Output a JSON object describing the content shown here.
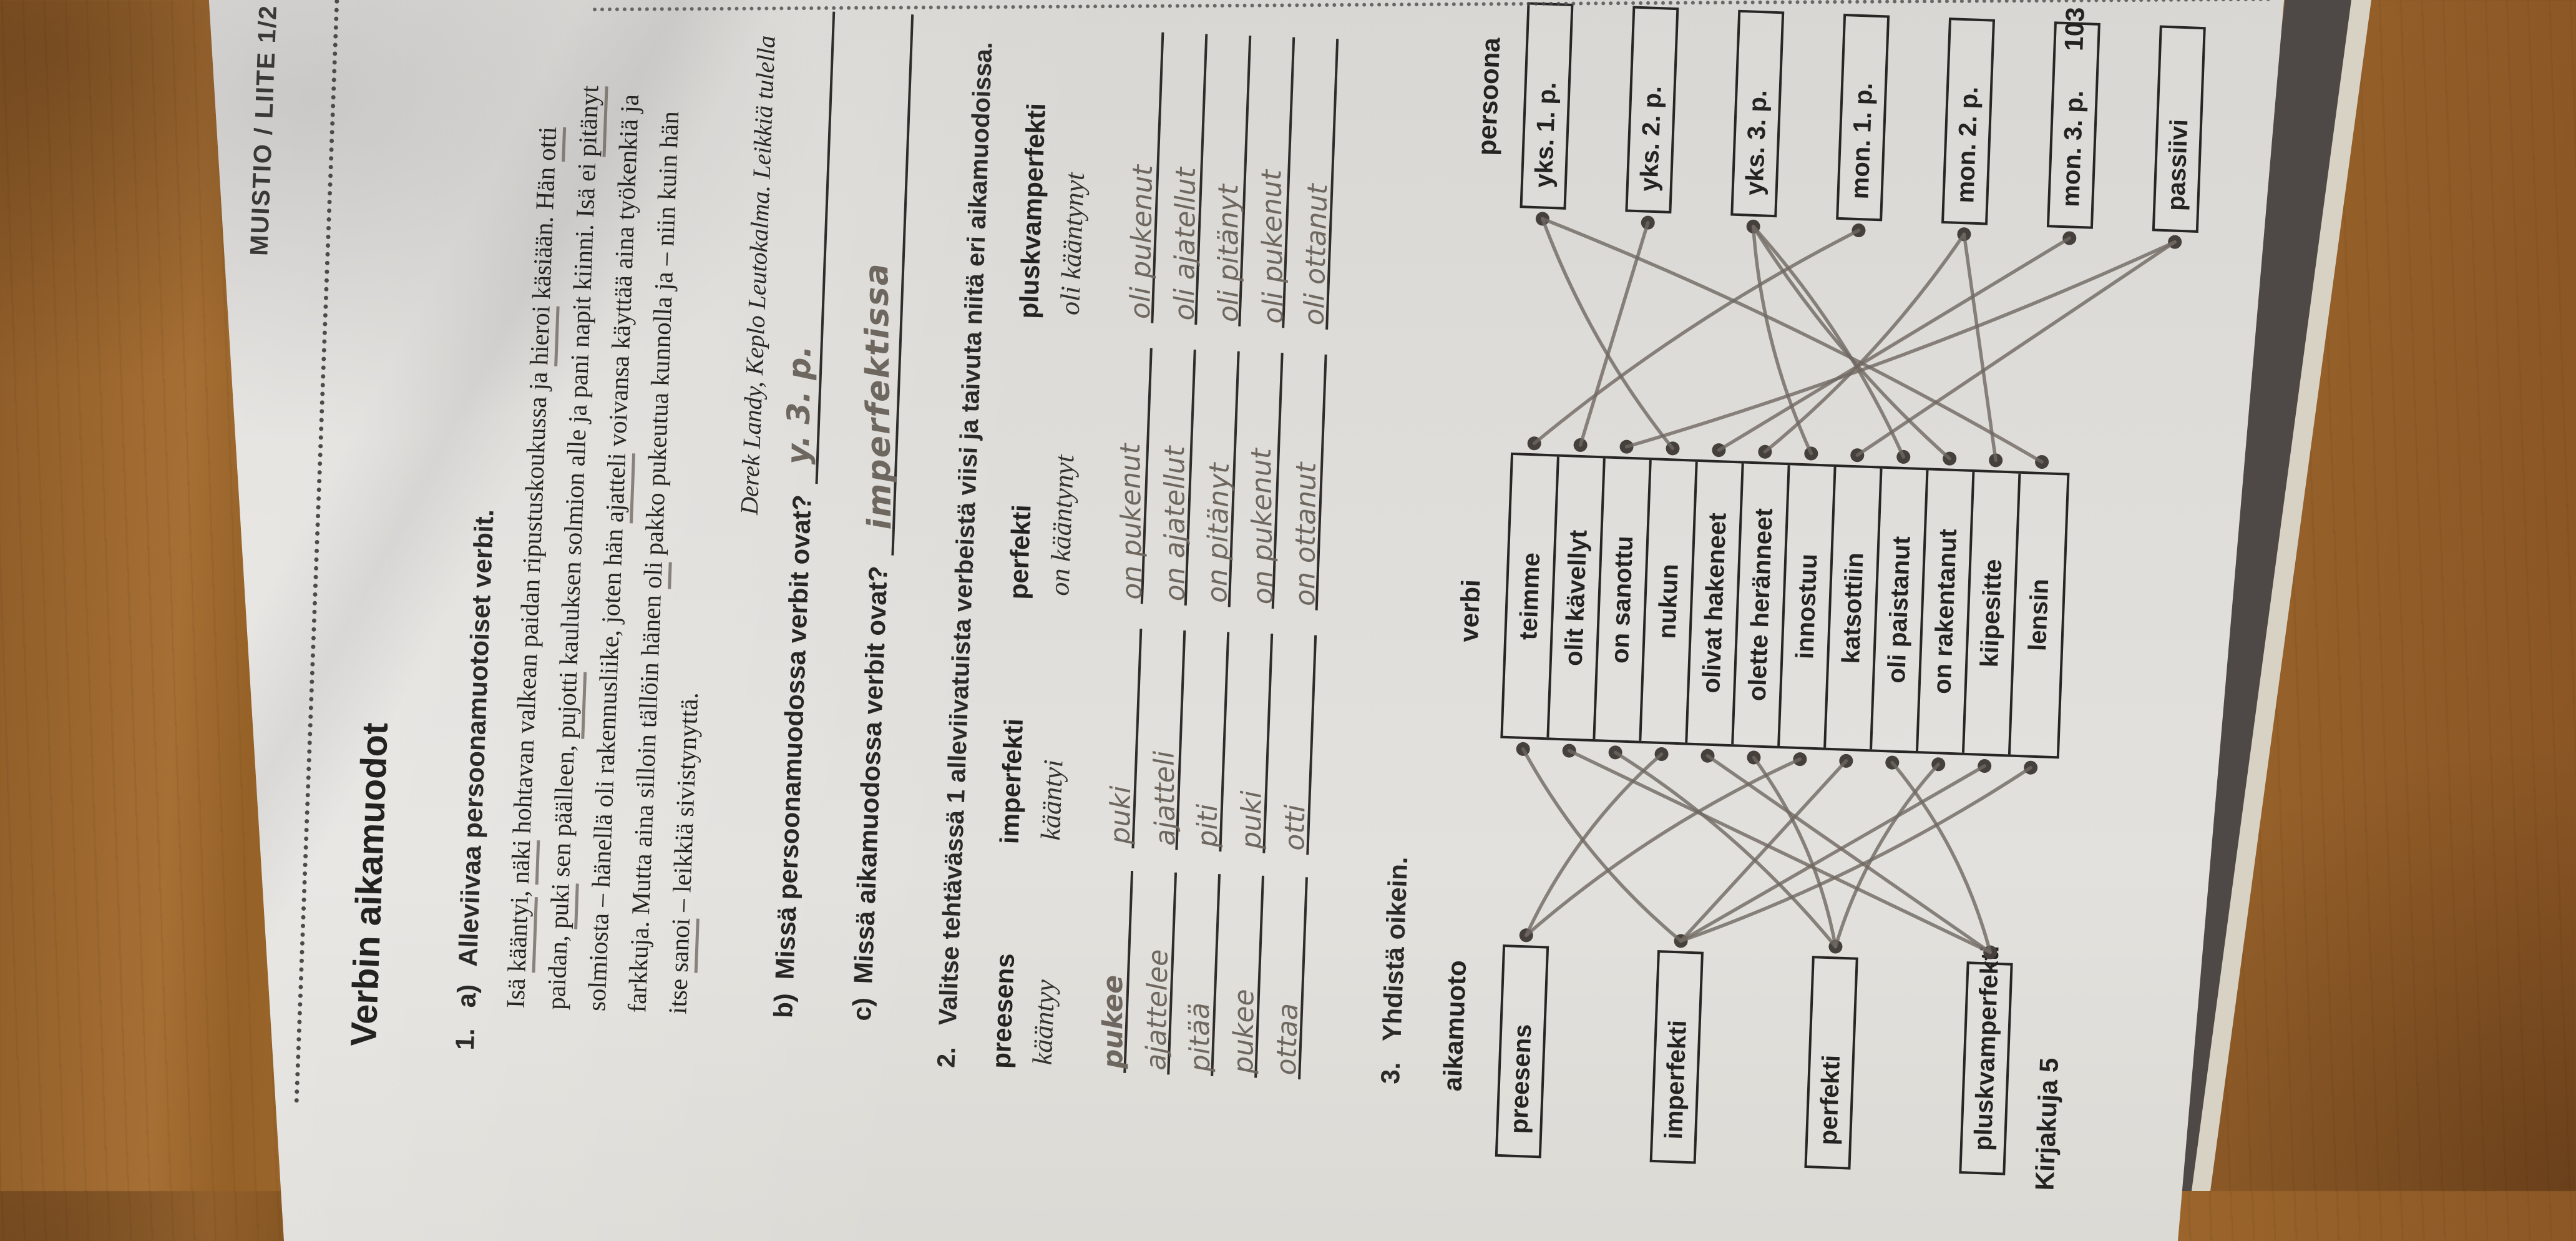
{
  "header": {
    "label": "MUISTIO / LIITE 1/2"
  },
  "title": "Verbin aikamuodot",
  "task1": {
    "number": "1.",
    "letter": "a)",
    "instruction": "Alleviivaa persoonamuotoiset verbit.",
    "paragraph_lines": [
      {
        "text": "Isä kääntyi, näki hohtavan valkean paidan ripustuskoukussa ja hieroi käsiään. Hän otti",
        "u": [
          "kääntyi",
          "näki",
          "hieroi",
          "otti"
        ]
      },
      {
        "text": "paidan, puki sen päälleen, pujotti kauluksen solmion alle ja pani napit kiinni. Isä ei pitänyt",
        "u": [
          "puki",
          "pujotti",
          "pitänyt"
        ]
      },
      {
        "text": "solmiosta – hänellä oli rakennusliike, joten hän ajatteli voivansa käyttää aina työkenkiä ja",
        "u": [
          "ajatteli"
        ]
      },
      {
        "text": "farkkuja. Mutta aina silloin tällöin hänen oli pakko pukeutua kunnolla ja – niin kuin hän",
        "u": [
          "oli"
        ]
      },
      {
        "text": "itse sanoi – leikkiä sivistynyttä.",
        "u": [
          "sanoi"
        ]
      }
    ],
    "attribution": "Derek Landy, Keplo Leutokalma. Leikkiä tulella",
    "b": {
      "label": "b)",
      "question": "Missä persoonamuodossa verbit ovat?",
      "answer": "y. 3. p."
    },
    "c": {
      "label": "c)",
      "question": "Missä aikamuodossa verbit ovat?",
      "answer": "imperfektissa"
    }
  },
  "task2": {
    "number": "2.",
    "instruction": "Valitse tehtävässä 1 alleviivatuista verbeistä viisi ja taivuta niitä eri aikamuodoissa.",
    "columns": [
      {
        "header": "preesens",
        "example": "kääntyy",
        "answers": [
          "pukee",
          "ajattelee",
          "pitää",
          "pukee",
          "ottaa"
        ]
      },
      {
        "header": "imperfekti",
        "example": "kääntyi",
        "answers": [
          "puki",
          "ajatteli",
          "piti",
          "puki",
          "otti"
        ]
      },
      {
        "header": "perfekti",
        "example": "on kääntynyt",
        "answers": [
          "on pukenut",
          "on ajatellut",
          "on pitänyt",
          "on pukenut",
          "on ottanut"
        ]
      },
      {
        "header": "pluskvamperfekti",
        "example": "oli kääntynyt",
        "answers": [
          "oli pukenut",
          "oli ajatellut",
          "oli pitänyt",
          "oli pukenut",
          "oli ottanut"
        ]
      }
    ]
  },
  "task3": {
    "number": "3.",
    "instruction": "Yhdistä oikein.",
    "col_headers": [
      "aikamuoto",
      "verbi",
      "persoona"
    ],
    "aikamuoto": [
      "preesens",
      "imperfekti",
      "perfekti",
      "pluskvamperfekti"
    ],
    "verbs": [
      "teimme",
      "olit kävellyt",
      "on sanottu",
      "nukun",
      "olivat hakeneet",
      "olette heränneet",
      "innostuu",
      "katsottiin",
      "oli paistanut",
      "on rakentanut",
      "kiipesitte",
      "lensin"
    ],
    "persoona": [
      "yks. 1. p.",
      "yks. 2. p.",
      "yks. 3. p.",
      "mon. 1. p.",
      "mon. 2. p.",
      "mon. 3. p.",
      "passiivi"
    ],
    "connections_left": [
      [
        0,
        1
      ],
      [
        1,
        3
      ],
      [
        2,
        2
      ],
      [
        3,
        0
      ],
      [
        4,
        3
      ],
      [
        5,
        2
      ],
      [
        6,
        0
      ],
      [
        7,
        1
      ],
      [
        8,
        3
      ],
      [
        9,
        2
      ],
      [
        10,
        1
      ],
      [
        11,
        1
      ]
    ],
    "connections_right": [
      [
        0,
        3
      ],
      [
        1,
        1
      ],
      [
        2,
        6
      ],
      [
        3,
        0
      ],
      [
        4,
        5
      ],
      [
        5,
        4
      ],
      [
        6,
        2
      ],
      [
        7,
        6
      ],
      [
        8,
        2
      ],
      [
        9,
        2
      ],
      [
        10,
        4
      ],
      [
        11,
        0
      ]
    ]
  },
  "footer": {
    "book": "Kirjakuja 5",
    "page": "103"
  },
  "colors": {
    "pencil": "#6f6862",
    "ink": "#272625",
    "paper": "#dedcd8",
    "wood": "#a87236"
  }
}
